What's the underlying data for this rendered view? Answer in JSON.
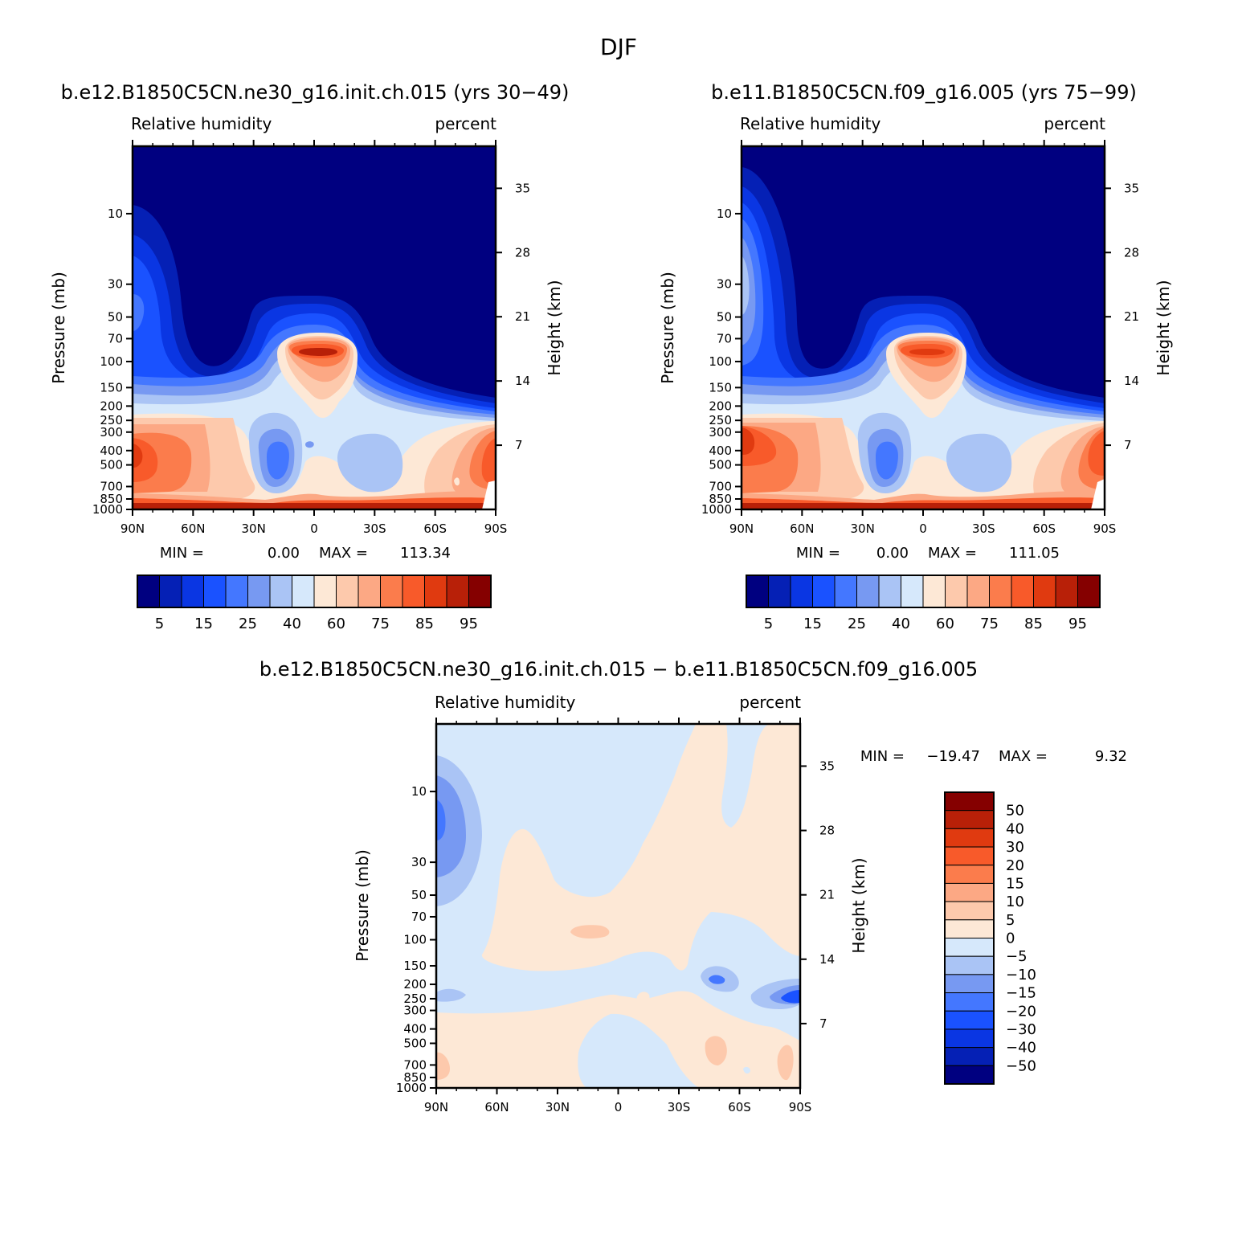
{
  "figure_title": "DJF",
  "colors": {
    "main_levels": [
      "#000080",
      "#0520b5",
      "#0a36e3",
      "#1a52ff",
      "#4477ff",
      "#7799f2",
      "#aac4f5",
      "#d6e8fb",
      "#fde8d6",
      "#fdc9ac",
      "#fca884",
      "#fb7c4c",
      "#f85a2a",
      "#e03a10",
      "#b82008",
      "#850000"
    ],
    "diff_levels": [
      "#000080",
      "#0520b5",
      "#0a36e3",
      "#1a52ff",
      "#4477ff",
      "#7799f2",
      "#aac4f5",
      "#d6e8fb",
      "#fde8d6",
      "#fdc9ac",
      "#fca884",
      "#fb7c4c",
      "#f85a2a",
      "#e03a10",
      "#b82008",
      "#850000"
    ]
  },
  "chart_data": [
    {
      "type": "heatmap",
      "title": "b.e12.B1850C5CN.ne30_g16.init.ch.015 (yrs 30−49)",
      "variable": "Relative humidity",
      "units": "percent",
      "ylabel": "Pressure (mb)",
      "y2label": "Height (km)",
      "xticks": [
        "90N",
        "60N",
        "30N",
        "0",
        "30S",
        "60S",
        "90S"
      ],
      "yticks": [
        "10",
        "30",
        "50",
        "70",
        "100",
        "150",
        "200",
        "250",
        "300",
        "400",
        "500",
        "700",
        "850",
        "1000"
      ],
      "y2ticks": [
        "35",
        "28",
        "21",
        "14",
        "7"
      ],
      "y_scale": "log",
      "y_range_mb": [
        1000,
        3.5
      ],
      "min_label": "MIN =",
      "min_value": "0.00",
      "max_label": "MAX =",
      "max_value": "113.34",
      "colorbar_orientation": "horizontal",
      "colorbar_labels": [
        "5",
        "15",
        "25",
        "40",
        "60",
        "75",
        "85",
        "95"
      ]
    },
    {
      "type": "heatmap",
      "title": "b.e11.B1850C5CN.f09_g16.005 (yrs 75−99)",
      "variable": "Relative humidity",
      "units": "percent",
      "ylabel": "Pressure (mb)",
      "y2label": "Height (km)",
      "xticks": [
        "90N",
        "60N",
        "30N",
        "0",
        "30S",
        "60S",
        "90S"
      ],
      "yticks": [
        "10",
        "30",
        "50",
        "70",
        "100",
        "150",
        "200",
        "250",
        "300",
        "400",
        "500",
        "700",
        "850",
        "1000"
      ],
      "y2ticks": [
        "35",
        "28",
        "21",
        "14",
        "7"
      ],
      "y_scale": "log",
      "y_range_mb": [
        1000,
        3.5
      ],
      "min_label": "MIN =",
      "min_value": "0.00",
      "max_label": "MAX =",
      "max_value": "111.05",
      "colorbar_orientation": "horizontal",
      "colorbar_labels": [
        "5",
        "15",
        "25",
        "40",
        "60",
        "75",
        "85",
        "95"
      ]
    },
    {
      "type": "heatmap",
      "title": "b.e12.B1850C5CN.ne30_g16.init.ch.015 − b.e11.B1850C5CN.f09_g16.005",
      "variable": "Relative humidity",
      "units": "percent",
      "ylabel": "Pressure (mb)",
      "y2label": "Height (km)",
      "xticks": [
        "90N",
        "60N",
        "30N",
        "0",
        "30S",
        "60S",
        "90S"
      ],
      "yticks": [
        "10",
        "30",
        "50",
        "70",
        "100",
        "150",
        "200",
        "250",
        "300",
        "400",
        "500",
        "700",
        "850",
        "1000"
      ],
      "y2ticks": [
        "35",
        "28",
        "21",
        "14",
        "7"
      ],
      "y_scale": "log",
      "y_range_mb": [
        1000,
        3.5
      ],
      "min_label": "MIN =",
      "min_value": "−19.47",
      "max_label": "MAX =",
      "max_value": "9.32",
      "colorbar_orientation": "vertical",
      "colorbar_labels": [
        "50",
        "40",
        "30",
        "20",
        "15",
        "10",
        "5",
        "0",
        "−5",
        "−10",
        "−15",
        "−20",
        "−30",
        "−40",
        "−50"
      ]
    }
  ]
}
